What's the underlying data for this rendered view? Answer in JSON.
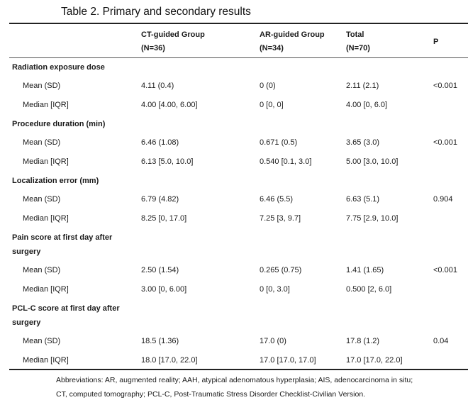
{
  "title": "Table 2. Primary and secondary results",
  "columns": [
    {
      "line1": "CT-guided Group",
      "line2": "(N=36)"
    },
    {
      "line1": "AR-guided Group",
      "line2": "(N=34)"
    },
    {
      "line1": "Total",
      "line2": "(N=70)"
    },
    {
      "line1": "P",
      "line2": ""
    }
  ],
  "groups": [
    {
      "label_lines": [
        "Radiation exposure dose"
      ],
      "rows": [
        {
          "label": "Mean (SD)",
          "ct": "4.11 (0.4)",
          "ar": "0 (0)",
          "total": "2.11 (2.1)",
          "p": "<0.001"
        },
        {
          "label": "Median [IQR]",
          "ct": "4.00 [4.00, 6.00]",
          "ar": "0 [0, 0]",
          "total": "4.00 [0, 6.0]",
          "p": ""
        }
      ]
    },
    {
      "label_lines": [
        "Procedure duration (min)"
      ],
      "rows": [
        {
          "label": "Mean (SD)",
          "ct": "6.46 (1.08)",
          "ar": "0.671 (0.5)",
          "total": "3.65 (3.0)",
          "p": "<0.001"
        },
        {
          "label": "Median [IQR]",
          "ct": "6.13 [5.0, 10.0]",
          "ar": "0.540 [0.1, 3.0]",
          "total": "5.00 [3.0, 10.0]",
          "p": ""
        }
      ]
    },
    {
      "label_lines": [
        "Localization error (mm)"
      ],
      "rows": [
        {
          "label": "Mean (SD)",
          "ct": "6.79 (4.82)",
          "ar": "6.46 (5.5)",
          "total": "6.63 (5.1)",
          "p": "0.904"
        },
        {
          "label": "Median [IQR]",
          "ct": "8.25 [0, 17.0]",
          "ar": "7.25 [3, 9.7]",
          "total": "7.75 [2.9, 10.0]",
          "p": ""
        }
      ]
    },
    {
      "label_lines": [
        "Pain  score  at  first  day  after",
        "surgery"
      ],
      "rows": [
        {
          "label": "Mean (SD)",
          "ct": "2.50 (1.54)",
          "ar": "0.265 (0.75)",
          "total": "1.41 (1.65)",
          "p": "<0.001"
        },
        {
          "label": "Median [IQR]",
          "ct": "3.00 [0, 6.00]",
          "ar": "0 [0, 3.0]",
          "total": "0.500 [2, 6.0]",
          "p": ""
        }
      ]
    },
    {
      "label_lines": [
        "PCL-C score at first day after",
        "surgery"
      ],
      "rows": [
        {
          "label": "Mean (SD)",
          "ct": "18.5 (1.36)",
          "ar": "17.0 (0)",
          "total": "17.8 (1.2)",
          "p": "0.04"
        },
        {
          "label": "Median [IQR]",
          "ct": "18.0 [17.0, 22.0]",
          "ar": "17.0 [17.0, 17.0]",
          "total": "17.0 [17.0, 22.0]",
          "p": ""
        }
      ]
    }
  ],
  "footnote": "Abbreviations: AR, augmented reality; AAH, atypical adenomatous hyperplasia; AIS, adenocarcinoma in situ; CT, computed tomography; PCL-C, Post-Traumatic Stress Disorder Checklist-Civilian Version."
}
